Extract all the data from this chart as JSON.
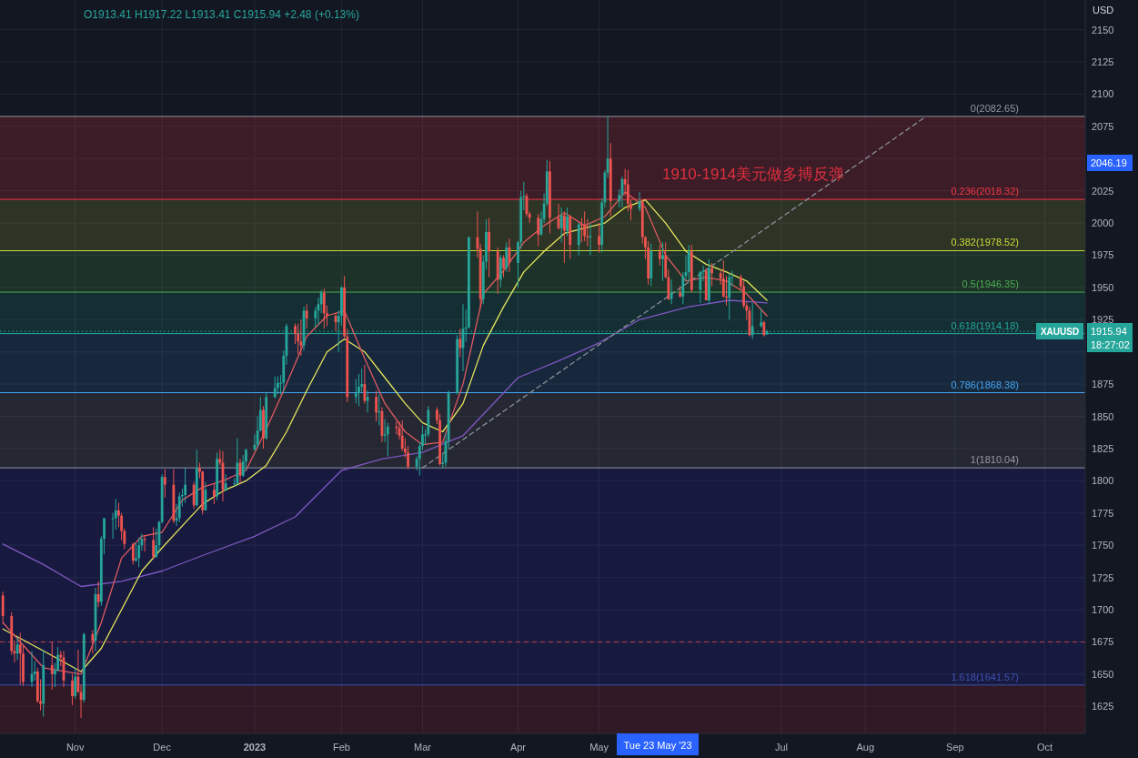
{
  "chart_data": {
    "type": "candlestick",
    "subtitle": "O1913.41 H1917.22 L1913.41 C1915.94 +2.48 (+0.13%)",
    "ylabel": "USD",
    "x": [
      "2022-10-07",
      "2022-10-10",
      "2022-10-11",
      "2022-10-12",
      "2022-10-13",
      "2022-10-14",
      "2022-10-17",
      "2022-10-18",
      "2022-10-19",
      "2022-10-20",
      "2022-10-21",
      "2022-10-24",
      "2022-10-25",
      "2022-10-26",
      "2022-10-27",
      "2022-10-28",
      "2022-10-31",
      "2022-11-01",
      "2022-11-02",
      "2022-11-03",
      "2022-11-04",
      "2022-11-07",
      "2022-11-08",
      "2022-11-09",
      "2022-11-10",
      "2022-11-11",
      "2022-11-14",
      "2022-11-15",
      "2022-11-16",
      "2022-11-17",
      "2022-11-18",
      "2022-11-21",
      "2022-11-22",
      "2022-11-23",
      "2022-11-24",
      "2022-11-25",
      "2022-11-28",
      "2022-11-29",
      "2022-11-30",
      "2022-12-01",
      "2022-12-02",
      "2022-12-05",
      "2022-12-06",
      "2022-12-07",
      "2022-12-08",
      "2022-12-09",
      "2022-12-12",
      "2022-12-13",
      "2022-12-14",
      "2022-12-15",
      "2022-12-16",
      "2022-12-19",
      "2022-12-20",
      "2022-12-21",
      "2022-12-22",
      "2022-12-23",
      "2022-12-26",
      "2022-12-27",
      "2022-12-28",
      "2022-12-29",
      "2022-12-30",
      "2023-01-02",
      "2023-01-03",
      "2023-01-04",
      "2023-01-05",
      "2023-01-06",
      "2023-01-09",
      "2023-01-10",
      "2023-01-11",
      "2023-01-12",
      "2023-01-13",
      "2023-01-16",
      "2023-01-17",
      "2023-01-18",
      "2023-01-19",
      "2023-01-20",
      "2023-01-23",
      "2023-01-24",
      "2023-01-25",
      "2023-01-26",
      "2023-01-27",
      "2023-01-30",
      "2023-01-31",
      "2023-02-01",
      "2023-02-02",
      "2023-02-03",
      "2023-02-06",
      "2023-02-07",
      "2023-02-08",
      "2023-02-09",
      "2023-02-10",
      "2023-02-13",
      "2023-02-14",
      "2023-02-15",
      "2023-02-16",
      "2023-02-17",
      "2023-02-20",
      "2023-02-21",
      "2023-02-22",
      "2023-02-23",
      "2023-02-24",
      "2023-02-27",
      "2023-02-28",
      "2023-03-01",
      "2023-03-02",
      "2023-03-03",
      "2023-03-06",
      "2023-03-07",
      "2023-03-08",
      "2023-03-09",
      "2023-03-10",
      "2023-03-13",
      "2023-03-14",
      "2023-03-15",
      "2023-03-16",
      "2023-03-17",
      "2023-03-20",
      "2023-03-21",
      "2023-03-22",
      "2023-03-23",
      "2023-03-24",
      "2023-03-27",
      "2023-03-28",
      "2023-03-29",
      "2023-03-30",
      "2023-03-31",
      "2023-04-03",
      "2023-04-04",
      "2023-04-05",
      "2023-04-06",
      "2023-04-07",
      "2023-04-10",
      "2023-04-11",
      "2023-04-12",
      "2023-04-13",
      "2023-04-14",
      "2023-04-17",
      "2023-04-18",
      "2023-04-19",
      "2023-04-20",
      "2023-04-21",
      "2023-04-24",
      "2023-04-25",
      "2023-04-26",
      "2023-04-27",
      "2023-04-28",
      "2023-05-01",
      "2023-05-02",
      "2023-05-03",
      "2023-05-04",
      "2023-05-05",
      "2023-05-08",
      "2023-05-09",
      "2023-05-10",
      "2023-05-11",
      "2023-05-12",
      "2023-05-15",
      "2023-05-16",
      "2023-05-17",
      "2023-05-18",
      "2023-05-19",
      "2023-05-22",
      "2023-05-23",
      "2023-05-24",
      "2023-05-25",
      "2023-05-26",
      "2023-05-29",
      "2023-05-30",
      "2023-05-31",
      "2023-06-01",
      "2023-06-02",
      "2023-06-05",
      "2023-06-06",
      "2023-06-07",
      "2023-06-08",
      "2023-06-09",
      "2023-06-12",
      "2023-06-13",
      "2023-06-14",
      "2023-06-15",
      "2023-06-16",
      "2023-06-19",
      "2023-06-20",
      "2023-06-21",
      "2023-06-22",
      "2023-06-23",
      "2023-06-26",
      "2023-06-27",
      "2023-06-28"
    ],
    "ohlc": [
      [
        1711,
        1714,
        1690,
        1695
      ],
      [
        1695,
        1698,
        1665,
        1668
      ],
      [
        1668,
        1676,
        1659,
        1666
      ],
      [
        1666,
        1679,
        1661,
        1673
      ],
      [
        1673,
        1682,
        1642,
        1666
      ],
      [
        1666,
        1672,
        1641,
        1644
      ],
      [
        1644,
        1668,
        1640,
        1650
      ],
      [
        1650,
        1660,
        1645,
        1652
      ],
      [
        1652,
        1655,
        1628,
        1629
      ],
      [
        1629,
        1646,
        1622,
        1627
      ],
      [
        1627,
        1669,
        1617,
        1657
      ],
      [
        1657,
        1675,
        1638,
        1650
      ],
      [
        1650,
        1659,
        1640,
        1653
      ],
      [
        1653,
        1671,
        1652,
        1665
      ],
      [
        1665,
        1668,
        1656,
        1663
      ],
      [
        1663,
        1668,
        1640,
        1645
      ],
      [
        1645,
        1650,
        1626,
        1633
      ],
      [
        1633,
        1655,
        1631,
        1648
      ],
      [
        1648,
        1669,
        1636,
        1636
      ],
      [
        1636,
        1642,
        1616,
        1630
      ],
      [
        1630,
        1682,
        1628,
        1681
      ],
      [
        1681,
        1684,
        1666,
        1676
      ],
      [
        1676,
        1717,
        1668,
        1712
      ],
      [
        1712,
        1722,
        1702,
        1706
      ],
      [
        1706,
        1757,
        1703,
        1755
      ],
      [
        1755,
        1771,
        1743,
        1771
      ],
      [
        1771,
        1775,
        1755,
        1771
      ],
      [
        1771,
        1786,
        1762,
        1777
      ],
      [
        1777,
        1783,
        1764,
        1773
      ],
      [
        1773,
        1775,
        1754,
        1761
      ],
      [
        1761,
        1763,
        1747,
        1751
      ],
      [
        1751,
        1752,
        1735,
        1738
      ],
      [
        1738,
        1752,
        1737,
        1740
      ],
      [
        1740,
        1756,
        1733,
        1750
      ],
      [
        1750,
        1759,
        1746,
        1755
      ],
      [
        1755,
        1758,
        1745,
        1754
      ],
      [
        1754,
        1764,
        1739,
        1741
      ],
      [
        1741,
        1763,
        1740,
        1750
      ],
      [
        1750,
        1769,
        1745,
        1768
      ],
      [
        1768,
        1805,
        1767,
        1803
      ],
      [
        1803,
        1809,
        1787,
        1797
      ],
      [
        1797,
        1809,
        1767,
        1769
      ],
      [
        1769,
        1782,
        1765,
        1771
      ],
      [
        1771,
        1791,
        1768,
        1788
      ],
      [
        1788,
        1794,
        1780,
        1789
      ],
      [
        1789,
        1810,
        1783,
        1797
      ],
      [
        1797,
        1799,
        1778,
        1781
      ],
      [
        1781,
        1824,
        1780,
        1810
      ],
      [
        1810,
        1814,
        1802,
        1807
      ],
      [
        1807,
        1808,
        1774,
        1777
      ],
      [
        1777,
        1799,
        1777,
        1793
      ],
      [
        1793,
        1798,
        1782,
        1788
      ],
      [
        1788,
        1822,
        1785,
        1817
      ],
      [
        1817,
        1824,
        1812,
        1814
      ],
      [
        1814,
        1823,
        1784,
        1793
      ],
      [
        1793,
        1805,
        1792,
        1798
      ],
      [
        1798,
        1802,
        1796,
        1798
      ],
      [
        1798,
        1833,
        1797,
        1814
      ],
      [
        1814,
        1817,
        1798,
        1804
      ],
      [
        1804,
        1820,
        1803,
        1815
      ],
      [
        1815,
        1825,
        1808,
        1824
      ],
      [
        1824,
        1836,
        1824,
        1828
      ],
      [
        1828,
        1850,
        1826,
        1839
      ],
      [
        1839,
        1865,
        1838,
        1855
      ],
      [
        1855,
        1858,
        1825,
        1833
      ],
      [
        1833,
        1869,
        1832,
        1865
      ],
      [
        1865,
        1881,
        1864,
        1872
      ],
      [
        1872,
        1881,
        1867,
        1876
      ],
      [
        1876,
        1882,
        1867,
        1876
      ],
      [
        1876,
        1901,
        1869,
        1897
      ],
      [
        1897,
        1922,
        1890,
        1920
      ],
      [
        1920,
        1922,
        1906,
        1914
      ],
      [
        1914,
        1922,
        1898,
        1908
      ],
      [
        1908,
        1925,
        1897,
        1905
      ],
      [
        1905,
        1935,
        1901,
        1932
      ],
      [
        1932,
        1937,
        1918,
        1926
      ],
      [
        1926,
        1935,
        1919,
        1932
      ],
      [
        1932,
        1942,
        1921,
        1937
      ],
      [
        1937,
        1948,
        1930,
        1946
      ],
      [
        1946,
        1949,
        1918,
        1930
      ],
      [
        1930,
        1936,
        1920,
        1928
      ],
      [
        1928,
        1930,
        1916,
        1923
      ],
      [
        1923,
        1932,
        1900,
        1928
      ],
      [
        1928,
        1951,
        1920,
        1950
      ],
      [
        1950,
        1959,
        1911,
        1912
      ],
      [
        1912,
        1918,
        1861,
        1865
      ],
      [
        1865,
        1879,
        1860,
        1868
      ],
      [
        1868,
        1883,
        1858,
        1873
      ],
      [
        1873,
        1887,
        1869,
        1875
      ],
      [
        1875,
        1890,
        1860,
        1862
      ],
      [
        1862,
        1870,
        1853,
        1865
      ],
      [
        1865,
        1870,
        1846,
        1853
      ],
      [
        1853,
        1867,
        1843,
        1854
      ],
      [
        1854,
        1857,
        1830,
        1835
      ],
      [
        1835,
        1848,
        1830,
        1836
      ],
      [
        1836,
        1845,
        1819,
        1842
      ],
      [
        1842,
        1846,
        1836,
        1841
      ],
      [
        1841,
        1846,
        1832,
        1835
      ],
      [
        1835,
        1847,
        1823,
        1825
      ],
      [
        1825,
        1833,
        1818,
        1822
      ],
      [
        1822,
        1827,
        1809,
        1811
      ],
      [
        1811,
        1819,
        1808,
        1817
      ],
      [
        1817,
        1830,
        1804,
        1827
      ],
      [
        1827,
        1843,
        1824,
        1836
      ],
      [
        1836,
        1840,
        1828,
        1836
      ],
      [
        1836,
        1858,
        1834,
        1855
      ],
      [
        1855,
        1857,
        1844,
        1847
      ],
      [
        1847,
        1852,
        1812,
        1813
      ],
      [
        1813,
        1821,
        1810.04,
        1814
      ],
      [
        1814,
        1837,
        1811,
        1831
      ],
      [
        1831,
        1870,
        1825,
        1868
      ],
      [
        1868,
        1913,
        1867,
        1910
      ],
      [
        1910,
        1918,
        1896,
        1903
      ],
      [
        1903,
        1937,
        1885,
        1918
      ],
      [
        1918,
        1933,
        1908,
        1919
      ],
      [
        1919,
        1989,
        1918,
        1989
      ],
      [
        1989,
        2009,
        1973,
        1980
      ],
      [
        1980,
        1984,
        1934,
        1941
      ],
      [
        1941,
        1975,
        1937,
        1970
      ],
      [
        1970,
        2003,
        1964,
        1993
      ],
      [
        1993,
        2004,
        1958,
        1978
      ],
      [
        1978,
        1981,
        1945,
        1956
      ],
      [
        1956,
        1975,
        1950,
        1973
      ],
      [
        1973,
        1975,
        1958,
        1965
      ],
      [
        1965,
        1985,
        1962,
        1981
      ],
      [
        1981,
        1988,
        1962,
        1969
      ],
      [
        1969,
        1986,
        1950,
        1985
      ],
      [
        1985,
        2025,
        1980,
        2020
      ],
      [
        2020,
        2032,
        2010,
        2021
      ],
      [
        2021,
        2023,
        2005,
        2007
      ],
      [
        2007,
        2009,
        2000,
        2004
      ],
      [
        2004,
        2007,
        1982,
        1991
      ],
      [
        1991,
        2009,
        1990,
        2003
      ],
      [
        2003,
        2023,
        2000,
        2015
      ],
      [
        2015,
        2049,
        2013,
        2040
      ],
      [
        2040,
        2048,
        1992,
        2004
      ],
      [
        2004,
        2015,
        1995,
        1996
      ],
      [
        1996,
        2012,
        1985,
        2006
      ],
      [
        2006,
        2009,
        1969,
        1994
      ],
      [
        1994,
        2012,
        1990,
        2005
      ],
      [
        2005,
        2006,
        1972,
        1983
      ],
      [
        1983,
        2000,
        1975,
        1999
      ],
      [
        1999,
        2004,
        1985,
        1998
      ],
      [
        1998,
        2009,
        1986,
        1990
      ],
      [
        1990,
        2003,
        1982,
        1989
      ],
      [
        1989,
        2000,
        1975,
        1990
      ],
      [
        1990,
        2000,
        1977,
        1983
      ],
      [
        1983,
        2019,
        1977,
        2016
      ],
      [
        2016,
        2041,
        2012,
        2039
      ],
      [
        2039,
        2082.65,
        2035,
        2050
      ],
      [
        2050,
        2062,
        2005,
        2017
      ],
      [
        2017,
        2026,
        2012,
        2022
      ],
      [
        2022,
        2036,
        2012,
        2034
      ],
      [
        2034,
        2042,
        2021,
        2030
      ],
      [
        2030,
        2041,
        2009,
        2015
      ],
      [
        2015,
        2018,
        2002,
        2011
      ],
      [
        2011,
        2024,
        2009,
        2017
      ],
      [
        2017,
        2018,
        1984,
        1989
      ],
      [
        1989,
        1990,
        1972,
        1981
      ],
      [
        1981,
        1986,
        1952,
        1957
      ],
      [
        1957,
        1984,
        1951,
        1978
      ],
      [
        1978,
        1983,
        1967,
        1972
      ],
      [
        1972,
        1985,
        1955,
        1975
      ],
      [
        1975,
        1985,
        1957,
        1958
      ],
      [
        1958,
        1964,
        1940,
        1941
      ],
      [
        1941,
        1956,
        1937,
        1946
      ],
      [
        1946,
        1951,
        1942,
        1943
      ],
      [
        1943,
        1962,
        1937,
        1959
      ],
      [
        1959,
        1975,
        1955,
        1962
      ],
      [
        1962,
        1983,
        1954,
        1978
      ],
      [
        1978,
        1983,
        1946,
        1948
      ],
      [
        1948,
        1963,
        1938,
        1962
      ],
      [
        1962,
        1967,
        1955,
        1963
      ],
      [
        1963,
        1965,
        1940,
        1940
      ],
      [
        1940,
        1972,
        1937,
        1965
      ],
      [
        1965,
        1969,
        1951,
        1961
      ],
      [
        1961,
        1964,
        1952,
        1957
      ],
      [
        1957,
        1971,
        1942,
        1943
      ],
      [
        1943,
        1959,
        1936,
        1942
      ],
      [
        1942,
        1961,
        1925,
        1958
      ],
      [
        1958,
        1963,
        1951,
        1958
      ],
      [
        1958,
        1960,
        1948,
        1951
      ],
      [
        1951,
        1955,
        1934,
        1936
      ],
      [
        1936,
        1939,
        1925,
        1932
      ],
      [
        1932,
        1935,
        1912,
        1913
      ],
      [
        1913,
        1938,
        1910,
        1920
      ],
      [
        1920,
        1933,
        1919,
        1923
      ],
      [
        1923,
        1924,
        1912,
        1913
      ],
      [
        1913.41,
        1917.22,
        1913.41,
        1915.94
      ]
    ],
    "series": [
      {
        "type": "line",
        "color": "#7e57c2",
        "x": [
          "2022-10-07",
          "2022-10-21",
          "2022-11-03",
          "2022-11-17",
          "2022-12-01",
          "2022-12-15",
          "2023-01-02",
          "2023-01-16",
          "2023-02-01",
          "2023-02-15",
          "2023-03-01",
          "2023-03-15",
          "2023-04-03",
          "2023-04-17",
          "2023-05-01",
          "2023-05-15",
          "2023-06-01",
          "2023-06-15",
          "2023-06-28"
        ],
        "values": [
          1751,
          1735,
          1718,
          1722,
          1730,
          1742,
          1757,
          1772,
          1808,
          1817,
          1822,
          1835,
          1880,
          1893,
          1907,
          1925,
          1935,
          1940,
          1938
        ]
      },
      {
        "type": "line",
        "color": "#e6e65c",
        "x": [
          "2022-10-07",
          "2022-10-21",
          "2022-11-03",
          "2022-11-10",
          "2022-11-17",
          "2022-11-24",
          "2022-12-01",
          "2022-12-08",
          "2022-12-15",
          "2022-12-22",
          "2022-12-30",
          "2023-01-06",
          "2023-01-13",
          "2023-01-20",
          "2023-01-27",
          "2023-02-02",
          "2023-02-09",
          "2023-02-16",
          "2023-02-23",
          "2023-03-01",
          "2023-03-08",
          "2023-03-15",
          "2023-03-22",
          "2023-03-29",
          "2023-04-05",
          "2023-04-12",
          "2023-04-19",
          "2023-04-26",
          "2023-05-03",
          "2023-05-10",
          "2023-05-17",
          "2023-05-24",
          "2023-05-31",
          "2023-06-07",
          "2023-06-14",
          "2023-06-21",
          "2023-06-28"
        ],
        "values": [
          1685,
          1668,
          1652,
          1670,
          1700,
          1730,
          1748,
          1765,
          1782,
          1792,
          1800,
          1812,
          1838,
          1870,
          1900,
          1910,
          1900,
          1880,
          1860,
          1845,
          1838,
          1860,
          1905,
          1935,
          1962,
          1978,
          1992,
          1996,
          2000,
          2012,
          2018,
          2000,
          1978,
          1968,
          1962,
          1955,
          1940
        ]
      },
      {
        "type": "line",
        "color": "#e05a5f",
        "x": [
          "2022-10-07",
          "2022-10-21",
          "2022-11-03",
          "2022-11-10",
          "2022-11-17",
          "2022-11-24",
          "2022-12-01",
          "2022-12-08",
          "2022-12-15",
          "2022-12-22",
          "2022-12-30",
          "2023-01-06",
          "2023-01-13",
          "2023-01-20",
          "2023-01-27",
          "2023-02-02",
          "2023-02-09",
          "2023-02-16",
          "2023-02-23",
          "2023-03-01",
          "2023-03-08",
          "2023-03-15",
          "2023-03-22",
          "2023-03-29",
          "2023-04-05",
          "2023-04-12",
          "2023-04-19",
          "2023-04-26",
          "2023-05-03",
          "2023-05-10",
          "2023-05-17",
          "2023-05-24",
          "2023-05-31",
          "2023-06-07",
          "2023-06-14",
          "2023-06-21",
          "2023-06-28"
        ],
        "values": [
          1690,
          1655,
          1650,
          1690,
          1740,
          1757,
          1760,
          1785,
          1795,
          1800,
          1808,
          1840,
          1875,
          1912,
          1928,
          1932,
          1895,
          1860,
          1838,
          1828,
          1830,
          1875,
          1945,
          1963,
          1985,
          1998,
          2008,
          1998,
          2005,
          2024,
          2012,
          1975,
          1955,
          1958,
          1955,
          1945,
          1928
        ]
      },
      {
        "type": "line",
        "color": "#8a8f98",
        "line_style": "dashed",
        "x": [
          "2023-03-01",
          "2023-08-22"
        ],
        "values": [
          1810.04,
          2082.65
        ]
      }
    ],
    "xlim": [
      "2022-10-06",
      "2023-10-16"
    ],
    "xticks": [
      {
        "value": "2022-11-01",
        "label": "Nov"
      },
      {
        "value": "2022-12-01",
        "label": "Dec"
      },
      {
        "value": "2023-01-02",
        "label": "2023"
      },
      {
        "value": "2023-02-01",
        "label": "Feb"
      },
      {
        "value": "2023-03-01",
        "label": "Mar"
      },
      {
        "value": "2023-04-03",
        "label": "Apr"
      },
      {
        "value": "2023-05-01",
        "label": "May"
      },
      {
        "value": "2023-07-03",
        "label": "Jul"
      },
      {
        "value": "2023-08-01",
        "label": "Aug"
      },
      {
        "value": "2023-09-01",
        "label": "Sep"
      },
      {
        "value": "2023-10-02",
        "label": "Oct"
      }
    ],
    "ylim": [
      1604,
      2173
    ],
    "yticks": [
      1625,
      1650,
      1675,
      1700,
      1725,
      1750,
      1775,
      1800,
      1825,
      1850,
      1875,
      {
        "value": 1900,
        "label": null
      },
      1925,
      1950,
      1975,
      2000,
      2025,
      {
        "value": 2050,
        "label": null
      },
      2075,
      2100,
      2125,
      2150
    ],
    "grid": true,
    "ref_lines": [
      {
        "axis": "y",
        "value": 2082.65,
        "label": "0(2082.65)",
        "color": "#9598a1"
      },
      {
        "axis": "y",
        "value": 2018.32,
        "label": "0.236(2018.32)",
        "color": "#f23645"
      },
      {
        "axis": "y",
        "value": 1978.52,
        "label": "0.382(1978.52)",
        "color": "#cddc39"
      },
      {
        "axis": "y",
        "value": 1946.35,
        "label": "0.5(1946.35)",
        "color": "#4caf50"
      },
      {
        "axis": "y",
        "value": 1914.18,
        "label": "0.618(1914.18)",
        "color": "#26a69a"
      },
      {
        "axis": "y",
        "value": 1868.38,
        "label": "0.786(1868.38)",
        "color": "#42a5f5"
      },
      {
        "axis": "y",
        "value": 1810.04,
        "label": "1(1810.04)",
        "color": "#9598a1"
      },
      {
        "axis": "y",
        "value": 1641.57,
        "label": "1.618(1641.57)",
        "color": "#3f51b5"
      },
      {
        "axis": "y",
        "value": 1675,
        "label": null,
        "color": "#c0404a",
        "line_style": "dashed"
      },
      {
        "axis": "y",
        "value": 1915.94,
        "label": null,
        "color": "#26a69a",
        "line_style": "dotted"
      }
    ],
    "bands": [
      {
        "axis": "y",
        "from": 2018.32,
        "to": 2082.65,
        "color": "#f23645"
      },
      {
        "axis": "y",
        "from": 1978.52,
        "to": 2018.32,
        "color": "#a5b83a"
      },
      {
        "axis": "y",
        "from": 1946.35,
        "to": 1978.52,
        "color": "#4caf50"
      },
      {
        "axis": "y",
        "from": 1914.18,
        "to": 1946.35,
        "color": "#1e9c8c"
      },
      {
        "axis": "y",
        "from": 1868.38,
        "to": 1914.18,
        "color": "#2d7ab8"
      },
      {
        "axis": "y",
        "from": 1810.04,
        "to": 1868.38,
        "color": "#787b86"
      },
      {
        "axis": "y",
        "from": 1641.57,
        "to": 1810.04,
        "color": "#2b2fc0"
      },
      {
        "axis": "y",
        "from": 1604,
        "to": 1641.57,
        "color": "#b8283a"
      }
    ],
    "annotations": [
      "1910-1914美元做多搏反弹",
      "2046.19",
      "XAUUSD",
      "1915.94",
      "18:27:02",
      "Tue 23 May '23"
    ]
  }
}
